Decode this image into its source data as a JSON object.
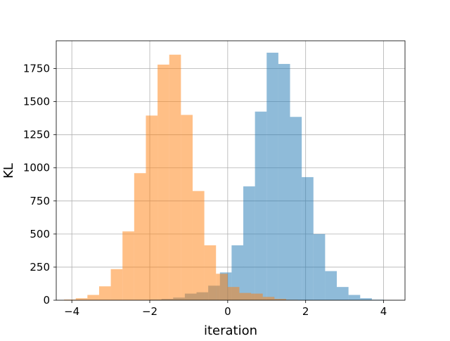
{
  "chart_data": {
    "type": "bar",
    "title": "",
    "xlabel": "iteration",
    "ylabel": "KL",
    "xlim": [
      -4.4,
      4.55
    ],
    "ylim": [
      0,
      1960
    ],
    "x_ticks": [
      -4,
      -2,
      0,
      2,
      4
    ],
    "x_tick_labels": [
      "−4",
      "−2",
      "0",
      "2",
      "4"
    ],
    "y_ticks": [
      0,
      250,
      500,
      750,
      1000,
      1250,
      1500,
      1750
    ],
    "y_tick_labels": [
      "0",
      "250",
      "500",
      "750",
      "1000",
      "1250",
      "1500",
      "1750"
    ],
    "grid": true,
    "legend": "none",
    "series": [
      {
        "color": "#1f77b4",
        "opacity": 0.5,
        "bins": [
          {
            "x0": -2.0,
            "x1": -1.7,
            "value": 5
          },
          {
            "x0": -1.7,
            "x1": -1.4,
            "value": 10
          },
          {
            "x0": -1.4,
            "x1": -1.1,
            "value": 20
          },
          {
            "x0": -1.1,
            "x1": -0.8,
            "value": 50
          },
          {
            "x0": -0.8,
            "x1": -0.5,
            "value": 60
          },
          {
            "x0": -0.5,
            "x1": -0.2,
            "value": 110
          },
          {
            "x0": -0.2,
            "x1": 0.1,
            "value": 210
          },
          {
            "x0": 0.1,
            "x1": 0.4,
            "value": 415
          },
          {
            "x0": 0.4,
            "x1": 0.7,
            "value": 860
          },
          {
            "x0": 0.7,
            "x1": 1.0,
            "value": 1425
          },
          {
            "x0": 1.0,
            "x1": 1.3,
            "value": 1870
          },
          {
            "x0": 1.3,
            "x1": 1.6,
            "value": 1785
          },
          {
            "x0": 1.6,
            "x1": 1.9,
            "value": 1385
          },
          {
            "x0": 1.9,
            "x1": 2.2,
            "value": 930
          },
          {
            "x0": 2.2,
            "x1": 2.5,
            "value": 500
          },
          {
            "x0": 2.5,
            "x1": 2.8,
            "value": 220
          },
          {
            "x0": 2.8,
            "x1": 3.1,
            "value": 100
          },
          {
            "x0": 3.1,
            "x1": 3.4,
            "value": 40
          },
          {
            "x0": 3.4,
            "x1": 3.7,
            "value": 15
          },
          {
            "x0": 3.7,
            "x1": 4.0,
            "value": 4
          }
        ]
      },
      {
        "color": "#ff7f0e",
        "opacity": 0.5,
        "bins": [
          {
            "x0": -4.2,
            "x1": -3.9,
            "value": 5
          },
          {
            "x0": -3.9,
            "x1": -3.6,
            "value": 15
          },
          {
            "x0": -3.6,
            "x1": -3.3,
            "value": 40
          },
          {
            "x0": -3.3,
            "x1": -3.0,
            "value": 105
          },
          {
            "x0": -3.0,
            "x1": -2.7,
            "value": 235
          },
          {
            "x0": -2.7,
            "x1": -2.4,
            "value": 520
          },
          {
            "x0": -2.4,
            "x1": -2.1,
            "value": 960
          },
          {
            "x0": -2.1,
            "x1": -1.8,
            "value": 1395
          },
          {
            "x0": -1.8,
            "x1": -1.5,
            "value": 1780
          },
          {
            "x0": -1.5,
            "x1": -1.2,
            "value": 1855
          },
          {
            "x0": -1.2,
            "x1": -0.9,
            "value": 1400
          },
          {
            "x0": -0.9,
            "x1": -0.6,
            "value": 825
          },
          {
            "x0": -0.6,
            "x1": -0.3,
            "value": 415
          },
          {
            "x0": -0.3,
            "x1": 0.0,
            "value": 200
          },
          {
            "x0": 0.0,
            "x1": 0.3,
            "value": 100
          },
          {
            "x0": 0.3,
            "x1": 0.6,
            "value": 55
          },
          {
            "x0": 0.6,
            "x1": 0.9,
            "value": 50
          },
          {
            "x0": 0.9,
            "x1": 1.2,
            "value": 25
          },
          {
            "x0": 1.2,
            "x1": 1.5,
            "value": 10
          },
          {
            "x0": 1.5,
            "x1": 1.8,
            "value": 3
          }
        ]
      }
    ]
  }
}
